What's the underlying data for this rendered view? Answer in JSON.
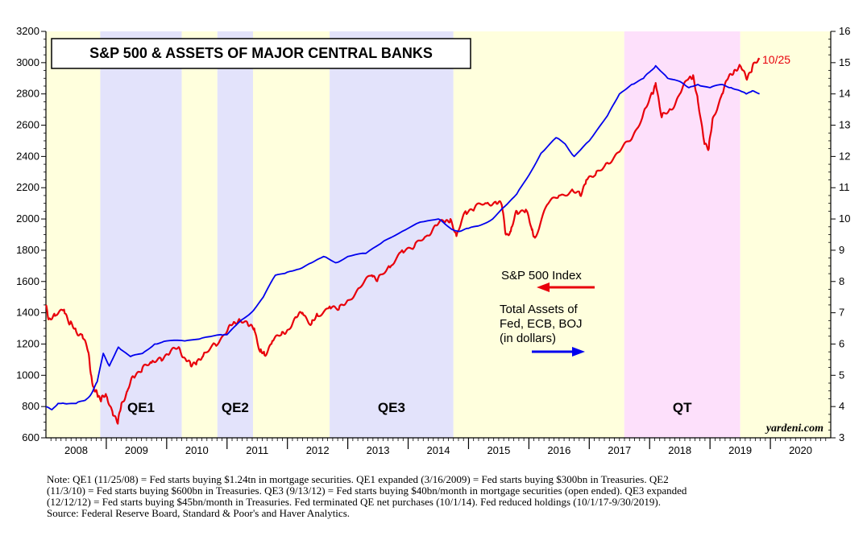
{
  "chart_data": {
    "type": "line",
    "title": "S&P 500 & ASSETS OF MAJOR CENTRAL BANKS",
    "end_label": "10/25",
    "source_mark": "yardeni.com",
    "left_axis": {
      "range": [
        600,
        3200
      ],
      "ticks": [
        600,
        800,
        1000,
        1200,
        1400,
        1600,
        1800,
        2000,
        2200,
        2400,
        2600,
        2800,
        3000,
        3200
      ]
    },
    "right_axis": {
      "range": [
        3,
        16
      ],
      "ticks": [
        3,
        4,
        5,
        6,
        7,
        8,
        9,
        10,
        11,
        12,
        13,
        14,
        15,
        16
      ]
    },
    "x_axis": {
      "range": [
        2008.0,
        2021.0
      ],
      "years": [
        "2008",
        "2009",
        "2010",
        "2011",
        "2012",
        "2013",
        "2014",
        "2015",
        "2016",
        "2017",
        "2018",
        "2019",
        "2020"
      ]
    },
    "bands": [
      {
        "start": 2008.0,
        "end": 2008.9,
        "color": "#ffffdd",
        "label": ""
      },
      {
        "start": 2008.9,
        "end": 2010.25,
        "color": "#e3e3fb",
        "label": "QE1"
      },
      {
        "start": 2010.25,
        "end": 2010.84,
        "color": "#ffffdd",
        "label": ""
      },
      {
        "start": 2010.84,
        "end": 2011.43,
        "color": "#e3e3fb",
        "label": "QE2"
      },
      {
        "start": 2011.43,
        "end": 2012.7,
        "color": "#ffffdd",
        "label": ""
      },
      {
        "start": 2012.7,
        "end": 2014.75,
        "color": "#e3e3fb",
        "label": "QE3"
      },
      {
        "start": 2014.75,
        "end": 2017.58,
        "color": "#ffffdd",
        "label": ""
      },
      {
        "start": 2017.58,
        "end": 2019.5,
        "color": "#fde0fb",
        "label": "QT"
      },
      {
        "start": 2019.5,
        "end": 2021.0,
        "color": "#ffffdd",
        "label": ""
      }
    ],
    "legend": {
      "sp500_label": "S&P 500 Index",
      "assets_lines": [
        "Total Assets of",
        "Fed, ECB, BOJ",
        "(in dollars)"
      ]
    },
    "series": [
      {
        "name": "S&P 500 Index",
        "axis": "left",
        "color": "#e8000b",
        "x": [
          2008.0,
          2008.05,
          2008.15,
          2008.3,
          2008.4,
          2008.5,
          2008.6,
          2008.7,
          2008.75,
          2008.8,
          2008.85,
          2008.92,
          2009.0,
          2009.1,
          2009.19,
          2009.25,
          2009.35,
          2009.45,
          2009.6,
          2009.75,
          2009.9,
          2010.05,
          2010.2,
          2010.3,
          2010.4,
          2010.5,
          2010.6,
          2010.8,
          2011.0,
          2011.1,
          2011.2,
          2011.35,
          2011.45,
          2011.55,
          2011.62,
          2011.75,
          2011.9,
          2012.0,
          2012.15,
          2012.25,
          2012.4,
          2012.5,
          2012.7,
          2012.85,
          2013.0,
          2013.2,
          2013.4,
          2013.5,
          2013.7,
          2013.9,
          2014.1,
          2014.3,
          2014.45,
          2014.6,
          2014.7,
          2014.8,
          2014.95,
          2015.1,
          2015.3,
          2015.45,
          2015.55,
          2015.62,
          2015.7,
          2015.8,
          2015.95,
          2016.05,
          2016.1,
          2016.3,
          2016.5,
          2016.7,
          2016.85,
          2016.95,
          2017.1,
          2017.3,
          2017.5,
          2017.7,
          2017.9,
          2018.05,
          2018.1,
          2018.2,
          2018.35,
          2018.5,
          2018.65,
          2018.72,
          2018.8,
          2018.9,
          2018.98,
          2019.05,
          2019.2,
          2019.3,
          2019.4,
          2019.5,
          2019.6,
          2019.7,
          2019.82
        ],
        "values": [
          1450,
          1360,
          1380,
          1420,
          1330,
          1280,
          1260,
          1150,
          1000,
          900,
          880,
          850,
          870,
          770,
          690,
          820,
          900,
          990,
          1050,
          1080,
          1110,
          1140,
          1180,
          1110,
          1060,
          1090,
          1120,
          1200,
          1280,
          1330,
          1360,
          1320,
          1300,
          1150,
          1130,
          1220,
          1260,
          1290,
          1370,
          1400,
          1330,
          1380,
          1440,
          1420,
          1480,
          1560,
          1640,
          1620,
          1690,
          1800,
          1820,
          1890,
          1960,
          1980,
          2000,
          1890,
          2050,
          2070,
          2100,
          2110,
          2090,
          1900,
          1920,
          2050,
          2060,
          1930,
          1880,
          2090,
          2150,
          2180,
          2150,
          2250,
          2280,
          2360,
          2430,
          2510,
          2680,
          2800,
          2870,
          2650,
          2700,
          2800,
          2900,
          2920,
          2750,
          2500,
          2450,
          2650,
          2800,
          2900,
          2950,
          2980,
          2900,
          2970,
          3020
        ]
      },
      {
        "name": "Total Assets of Fed, ECB, BOJ",
        "axis": "right",
        "color": "#0000ee",
        "x": [
          2008.0,
          2008.1,
          2008.2,
          2008.3,
          2008.5,
          2008.65,
          2008.75,
          2008.85,
          2008.95,
          2009.05,
          2009.2,
          2009.4,
          2009.6,
          2009.8,
          2010.0,
          2010.3,
          2010.6,
          2010.9,
          2011.0,
          2011.2,
          2011.4,
          2011.6,
          2011.8,
          2012.0,
          2012.2,
          2012.4,
          2012.6,
          2012.8,
          2013.0,
          2013.3,
          2013.6,
          2013.9,
          2014.2,
          2014.5,
          2014.7,
          2014.85,
          2015.0,
          2015.2,
          2015.4,
          2015.6,
          2015.8,
          2016.0,
          2016.2,
          2016.45,
          2016.6,
          2016.75,
          2017.0,
          2017.3,
          2017.5,
          2017.7,
          2017.9,
          2018.0,
          2018.1,
          2018.3,
          2018.5,
          2018.65,
          2018.8,
          2019.0,
          2019.2,
          2019.35,
          2019.5,
          2019.6,
          2019.7,
          2019.82
        ],
        "values": [
          4.0,
          3.9,
          4.1,
          4.1,
          4.1,
          4.2,
          4.4,
          4.8,
          5.7,
          5.3,
          5.9,
          5.6,
          5.7,
          6.0,
          6.1,
          6.1,
          6.2,
          6.3,
          6.3,
          6.7,
          7.0,
          7.5,
          8.2,
          8.3,
          8.4,
          8.6,
          8.8,
          8.6,
          8.8,
          8.9,
          9.3,
          9.6,
          9.9,
          10.0,
          9.7,
          9.6,
          9.7,
          9.8,
          10.0,
          10.4,
          10.8,
          11.4,
          12.1,
          12.6,
          12.4,
          12.0,
          12.5,
          13.3,
          14.0,
          14.3,
          14.5,
          14.7,
          14.9,
          14.5,
          14.4,
          14.2,
          14.3,
          14.2,
          14.3,
          14.2,
          14.1,
          14.0,
          14.1,
          14.0
        ]
      }
    ]
  },
  "note": {
    "lines": [
      "Note: QE1 (11/25/08) = Fed starts buying $1.24tn in mortgage securities. QE1 expanded (3/16/2009) = Fed starts buying $300bn in Treasuries. QE2",
      "(11/3/10) = Fed starts buying $600bn in Treasuries. QE3 (9/13/12) = Fed starts buying $40bn/month in mortgage securities (open ended). QE3 expanded",
      "(12/12/12) = Fed starts buying $45bn/month in Treasuries. Fed terminated QE net purchases (10/1/14). Fed reduced holdings (10/1/17-9/30/2019).",
      "Source: Federal Reserve Board, Standard & Poor's and Haver Analytics."
    ]
  }
}
